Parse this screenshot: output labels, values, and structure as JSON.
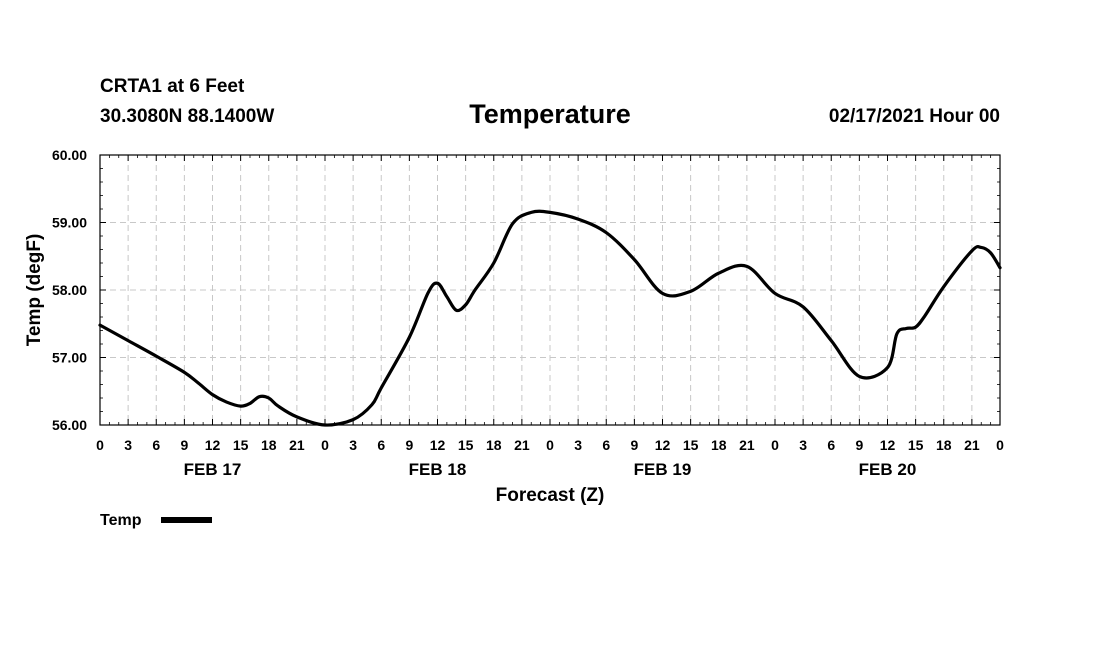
{
  "header": {
    "station": "CRTA1 at 6 Feet",
    "coords": "30.3080N 88.1400W",
    "title": "Temperature",
    "issued": "02/17/2021 Hour 00"
  },
  "legend": {
    "label": "Temp"
  },
  "chart_data": {
    "type": "line",
    "title": "Temperature",
    "xlabel": "Forecast (Z)",
    "ylabel": "Temp (degF)",
    "ylim": [
      56.0,
      60.0
    ],
    "xlim": [
      0,
      96
    ],
    "grid": true,
    "legend_position": "bottom-left",
    "y_ticks": [
      "56.00",
      "57.00",
      "58.00",
      "59.00",
      "60.00"
    ],
    "x_ticks": [
      "0",
      "3",
      "6",
      "9",
      "12",
      "15",
      "18",
      "21",
      "0",
      "3",
      "6",
      "9",
      "12",
      "15",
      "18",
      "21",
      "0",
      "3",
      "6",
      "9",
      "12",
      "15",
      "18",
      "21",
      "0",
      "3",
      "6",
      "9",
      "12",
      "15",
      "18",
      "21",
      "0"
    ],
    "day_labels": [
      {
        "label": "FEB 17",
        "hour": 12
      },
      {
        "label": "FEB 18",
        "hour": 36
      },
      {
        "label": "FEB 19",
        "hour": 60
      },
      {
        "label": "FEB 20",
        "hour": 84
      }
    ],
    "series": [
      {
        "name": "Temp",
        "color": "#000000",
        "x": [
          0,
          3,
          6,
          9,
          10.5,
          12,
          13.5,
          15,
          16,
          17,
          18,
          19,
          21,
          24,
          27,
          29,
          30,
          33,
          35,
          36,
          37,
          38,
          39,
          40,
          42,
          44,
          46,
          48,
          51,
          54,
          57,
          60,
          63,
          66,
          69,
          72,
          75,
          78,
          81,
          84,
          85,
          86,
          87,
          88,
          90,
          93,
          94,
          95,
          96
        ],
        "values": [
          57.48,
          57.25,
          57.02,
          56.78,
          56.62,
          56.45,
          56.34,
          56.28,
          56.32,
          56.42,
          56.4,
          56.28,
          56.12,
          56.0,
          56.08,
          56.3,
          56.55,
          57.3,
          57.96,
          58.1,
          57.9,
          57.7,
          57.78,
          58.0,
          58.4,
          58.98,
          59.15,
          59.15,
          59.05,
          58.85,
          58.45,
          57.95,
          57.98,
          58.25,
          58.35,
          57.95,
          57.75,
          57.25,
          56.72,
          56.85,
          57.35,
          57.43,
          57.45,
          57.62,
          58.05,
          58.58,
          58.63,
          58.55,
          58.33
        ]
      }
    ]
  }
}
